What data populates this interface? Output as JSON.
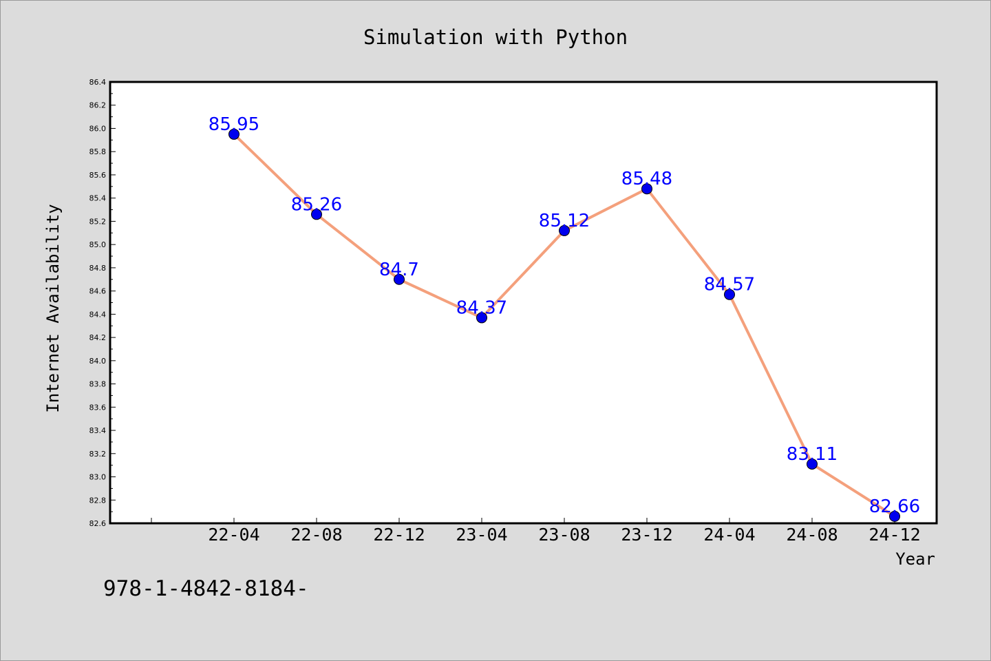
{
  "chart_data": {
    "type": "line",
    "title": "Simulation with Python",
    "xlabel": "Year",
    "ylabel": "Internet Availability",
    "categories": [
      "22-04",
      "22-08",
      "22-12",
      "23-04",
      "23-08",
      "23-12",
      "24-04",
      "24-08",
      "24-12"
    ],
    "values": [
      85.95,
      85.26,
      84.7,
      84.37,
      85.12,
      85.48,
      84.57,
      83.11,
      82.66
    ],
    "data_labels": [
      "85.95",
      "85.26",
      "84.7",
      "84.37",
      "85.12",
      "85.48",
      "84.57",
      "83.11",
      "82.66"
    ],
    "yticks": [
      "82.6",
      "82.8",
      "83.0",
      "83.2",
      "83.4",
      "83.6",
      "83.8",
      "84.0",
      "84.2",
      "84.4",
      "84.6",
      "84.8",
      "85.0",
      "85.2",
      "85.4",
      "85.6",
      "85.8",
      "86.0",
      "86.2",
      "86.4"
    ],
    "ylim": [
      82.6,
      86.4
    ],
    "grid": false,
    "line_color": "#f4a07c",
    "marker_color": "#0000ee",
    "label_color": "#0000ff"
  },
  "footnote": "978-1-4842-8184-"
}
